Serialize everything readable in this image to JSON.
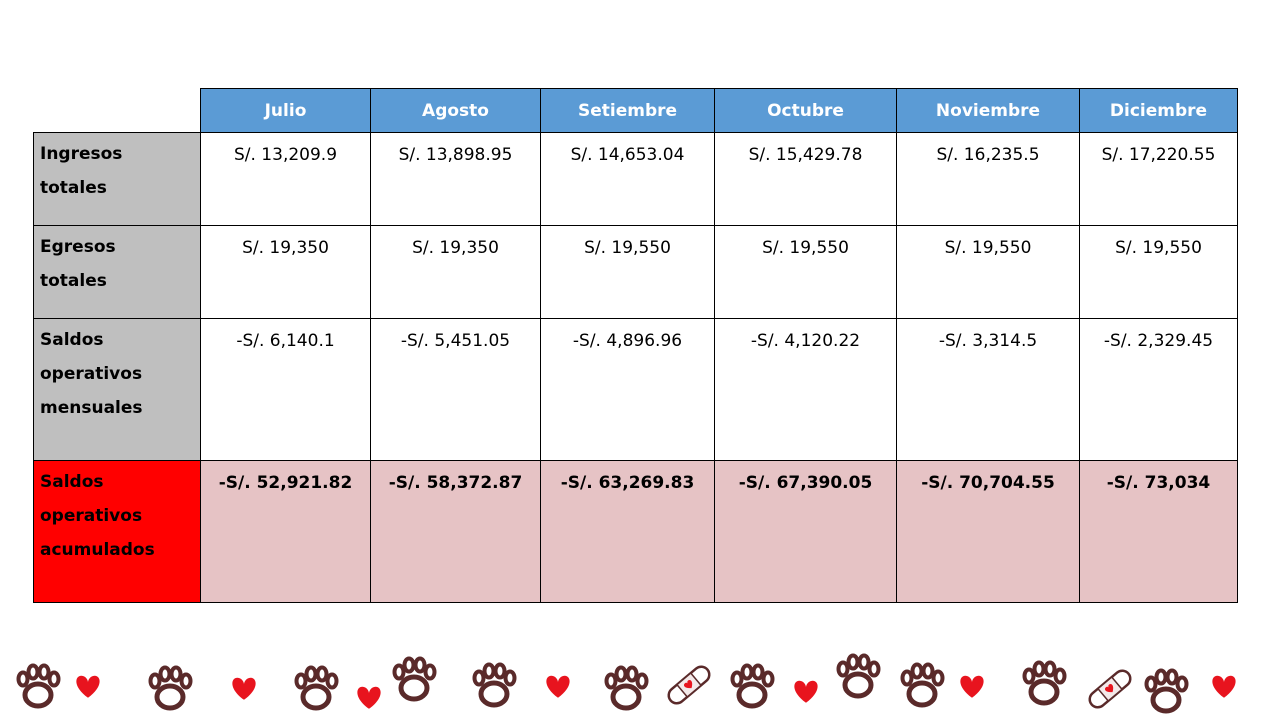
{
  "table": {
    "months": [
      "Julio",
      "Agosto",
      "Setiembre",
      "Octubre",
      "Noviembre",
      "Diciembre"
    ],
    "rows": [
      {
        "label_lines": [
          "Ingresos",
          "totales"
        ],
        "values": [
          "S/. 13,209.9",
          "S/. 13,898.95",
          "S/. 14,653.04",
          "S/. 15,429.78",
          "S/. 16,235.5",
          "S/. 17,220.55"
        ]
      },
      {
        "label_lines": [
          "Egresos",
          "totales"
        ],
        "values": [
          "S/. 19,350",
          "S/. 19,350",
          "S/. 19,550",
          "S/. 19,550",
          "S/. 19,550",
          "S/. 19,550"
        ]
      },
      {
        "label_lines": [
          "Saldos",
          "operativos",
          "mensuales"
        ],
        "values": [
          "-S/. 6,140.1",
          "-S/. 5,451.05",
          "-S/. 4,896.96",
          "-S/. 4,120.22",
          "-S/. 3,314.5",
          "-S/. 2,329.45"
        ]
      },
      {
        "label_lines": [
          "Saldos",
          "operativos",
          "acumulados"
        ],
        "values": [
          "-S/. 52,921.82",
          "-S/. 58,372.87",
          "-S/. 63,269.83",
          "-S/.  67,390.05",
          "-S/. 70,704.55",
          "-S/. 73,034"
        ]
      }
    ]
  },
  "colors": {
    "header_blue": "#5b9bd5",
    "label_gray": "#bfbfbf",
    "label_red": "#ff0000",
    "accumulated_pink": "#e6c3c5",
    "paw_brown": "#5a2a2a",
    "heart_red": "#e8141e"
  },
  "decor_icons": [
    "paw-icon",
    "heart-icon",
    "bandage-icon"
  ]
}
